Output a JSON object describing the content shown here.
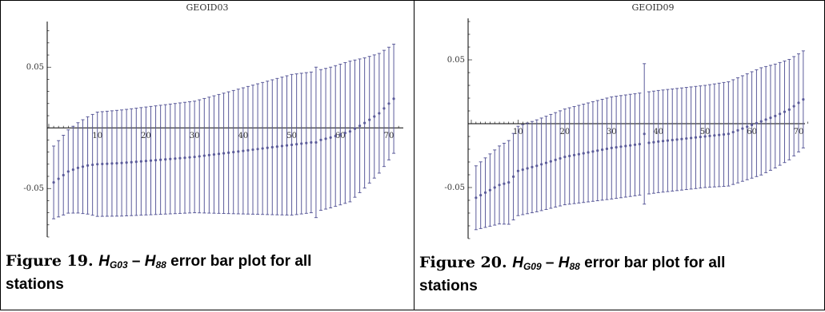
{
  "figures": [
    {
      "caption": {
        "label": "Figure 19.",
        "h1": "H",
        "h1_sub": "G03",
        "dash": "–",
        "h2": "H",
        "h2_sub": "88",
        "rest_line1": "error bar plot for all",
        "rest_line2": "stations"
      }
    },
    {
      "caption": {
        "label": "Figure 20.",
        "h1": "H",
        "h1_sub": "G09",
        "dash": "–",
        "h2": "H",
        "h2_sub": "88",
        "rest_line1": "error bar plot for all",
        "rest_line2": "stations"
      }
    }
  ],
  "chart_data": [
    {
      "type": "errorbar",
      "title": "GEOID03",
      "xticks": [
        10,
        20,
        30,
        40,
        50,
        60,
        70
      ],
      "yticks": [
        0.05,
        -0.05
      ],
      "ytick_labels": [
        "0.05",
        "-0.05"
      ],
      "xlim": [
        0,
        72
      ],
      "ylim": [
        -0.09,
        0.085
      ],
      "color": "#5b5b9a",
      "n_points": 71,
      "center_knots": [
        [
          1,
          -0.045
        ],
        [
          2,
          -0.042
        ],
        [
          4,
          -0.036
        ],
        [
          6,
          -0.033
        ],
        [
          8,
          -0.031
        ],
        [
          10,
          -0.03
        ],
        [
          15,
          -0.029
        ],
        [
          30,
          -0.024
        ],
        [
          40,
          -0.019
        ],
        [
          50,
          -0.014
        ],
        [
          54,
          -0.012
        ],
        [
          58,
          -0.008
        ],
        [
          62,
          -0.003
        ],
        [
          65,
          0.004
        ],
        [
          68,
          0.012
        ],
        [
          71,
          0.024
        ]
      ],
      "err_knots": [
        [
          1,
          0.03
        ],
        [
          10,
          0.043
        ],
        [
          30,
          0.046
        ],
        [
          50,
          0.058
        ],
        [
          62,
          0.058
        ],
        [
          71,
          0.045
        ]
      ],
      "outliers": [
        {
          "x": 55,
          "y": -0.012,
          "err": 0.062
        }
      ]
    },
    {
      "type": "errorbar",
      "title": "GEOID09",
      "xticks": [
        10,
        20,
        30,
        40,
        50,
        60,
        70
      ],
      "yticks": [
        0.05,
        -0.05
      ],
      "ytick_labels": [
        "0.05",
        "-0.05"
      ],
      "xlim": [
        0,
        72
      ],
      "ylim": [
        -0.09,
        0.08
      ],
      "color": "#5b5b9a",
      "n_points": 71,
      "center_knots": [
        [
          1,
          -0.058
        ],
        [
          3,
          -0.054
        ],
        [
          6,
          -0.048
        ],
        [
          8,
          -0.046
        ],
        [
          10,
          -0.037
        ],
        [
          14,
          -0.033
        ],
        [
          20,
          -0.026
        ],
        [
          30,
          -0.019
        ],
        [
          40,
          -0.014
        ],
        [
          50,
          -0.01
        ],
        [
          55,
          -0.008
        ],
        [
          60,
          -0.001
        ],
        [
          65,
          0.006
        ],
        [
          68,
          0.011
        ],
        [
          71,
          0.019
        ]
      ],
      "err_knots": [
        [
          1,
          0.025
        ],
        [
          10,
          0.035
        ],
        [
          30,
          0.04
        ],
        [
          50,
          0.04
        ],
        [
          62,
          0.042
        ],
        [
          71,
          0.038
        ]
      ],
      "outliers": [
        {
          "x": 37,
          "y": -0.008,
          "err": 0.055
        }
      ]
    }
  ]
}
